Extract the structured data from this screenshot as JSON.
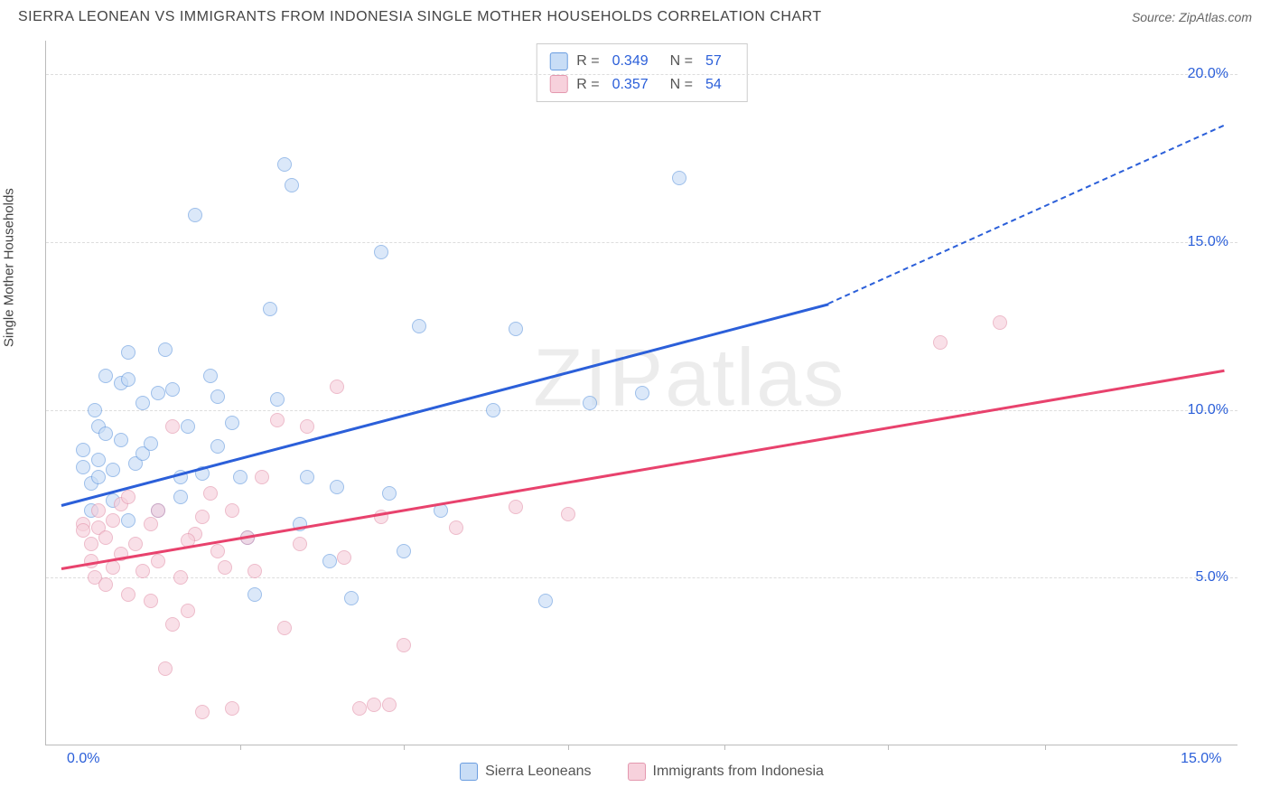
{
  "title": "SIERRA LEONEAN VS IMMIGRANTS FROM INDONESIA SINGLE MOTHER HOUSEHOLDS CORRELATION CHART",
  "source": "Source: ZipAtlas.com",
  "watermark": "ZIPatlas",
  "y_axis_label": "Single Mother Households",
  "chart": {
    "type": "scatter",
    "background_color": "#ffffff",
    "grid_color": "#dddddd",
    "axis_color": "#bbbbbb",
    "tick_label_color": "#2b5fd9",
    "xlim": [
      -0.5,
      15.5
    ],
    "ylim": [
      0,
      21
    ],
    "x_ticks": [
      0.0,
      15.0
    ],
    "x_tick_labels": [
      "0.0%",
      "15.0%"
    ],
    "x_minor_ticks": [
      2.1,
      4.3,
      6.5,
      8.6,
      10.8,
      12.9
    ],
    "y_ticks": [
      5.0,
      10.0,
      15.0,
      20.0
    ],
    "y_tick_labels": [
      "5.0%",
      "10.0%",
      "15.0%",
      "20.0%"
    ],
    "series": [
      {
        "name": "Sierra Leoneans",
        "fill": "#c8ddf6",
        "stroke": "#6a9de0",
        "trend_color": "#2b5fd9",
        "r": "0.349",
        "n": "57",
        "trend": {
          "x1": -0.3,
          "y1": 7.2,
          "x2": 10.0,
          "y2": 13.2,
          "x2_ext": 15.3,
          "y2_ext": 18.5
        },
        "points": [
          [
            0.0,
            8.8
          ],
          [
            0.0,
            8.3
          ],
          [
            0.1,
            7.0
          ],
          [
            0.1,
            7.8
          ],
          [
            0.15,
            10.0
          ],
          [
            0.2,
            9.5
          ],
          [
            0.2,
            8.5
          ],
          [
            0.2,
            8.0
          ],
          [
            0.3,
            11.0
          ],
          [
            0.3,
            9.3
          ],
          [
            0.4,
            8.2
          ],
          [
            0.4,
            7.3
          ],
          [
            0.5,
            9.1
          ],
          [
            0.5,
            10.8
          ],
          [
            0.6,
            10.9
          ],
          [
            0.6,
            6.7
          ],
          [
            0.7,
            8.4
          ],
          [
            0.8,
            8.7
          ],
          [
            0.8,
            10.2
          ],
          [
            0.9,
            9.0
          ],
          [
            1.0,
            10.5
          ],
          [
            1.0,
            7.0
          ],
          [
            1.1,
            11.8
          ],
          [
            1.2,
            10.6
          ],
          [
            1.3,
            8.0
          ],
          [
            1.3,
            7.4
          ],
          [
            1.4,
            9.5
          ],
          [
            1.5,
            15.8
          ],
          [
            1.6,
            8.1
          ],
          [
            1.7,
            11.0
          ],
          [
            1.8,
            10.4
          ],
          [
            2.0,
            9.6
          ],
          [
            2.1,
            8.0
          ],
          [
            2.3,
            4.5
          ],
          [
            2.5,
            13.0
          ],
          [
            2.6,
            10.3
          ],
          [
            2.7,
            17.3
          ],
          [
            2.8,
            16.7
          ],
          [
            2.9,
            6.6
          ],
          [
            3.0,
            8.0
          ],
          [
            3.3,
            5.5
          ],
          [
            3.4,
            7.7
          ],
          [
            3.6,
            4.4
          ],
          [
            4.0,
            14.7
          ],
          [
            4.1,
            7.5
          ],
          [
            4.3,
            5.8
          ],
          [
            4.5,
            12.5
          ],
          [
            4.8,
            7.0
          ],
          [
            5.5,
            10.0
          ],
          [
            5.8,
            12.4
          ],
          [
            6.2,
            4.3
          ],
          [
            6.8,
            10.2
          ],
          [
            7.5,
            10.5
          ],
          [
            8.0,
            16.9
          ],
          [
            0.6,
            11.7
          ],
          [
            1.8,
            8.9
          ],
          [
            2.2,
            6.2
          ]
        ]
      },
      {
        "name": "Immigrants from Indonesia",
        "fill": "#f7d1dc",
        "stroke": "#e498af",
        "trend_color": "#e8426d",
        "r": "0.357",
        "n": "54",
        "trend": {
          "x1": -0.3,
          "y1": 5.3,
          "x2": 15.3,
          "y2": 11.2,
          "x2_ext": 15.3,
          "y2_ext": 11.2
        },
        "points": [
          [
            0.0,
            6.6
          ],
          [
            0.0,
            6.4
          ],
          [
            0.1,
            6.0
          ],
          [
            0.1,
            5.5
          ],
          [
            0.15,
            5.0
          ],
          [
            0.2,
            7.0
          ],
          [
            0.2,
            6.5
          ],
          [
            0.3,
            4.8
          ],
          [
            0.3,
            6.2
          ],
          [
            0.4,
            6.7
          ],
          [
            0.4,
            5.3
          ],
          [
            0.5,
            7.2
          ],
          [
            0.5,
            5.7
          ],
          [
            0.6,
            7.4
          ],
          [
            0.6,
            4.5
          ],
          [
            0.7,
            6.0
          ],
          [
            0.8,
            5.2
          ],
          [
            0.9,
            6.6
          ],
          [
            0.9,
            4.3
          ],
          [
            1.0,
            5.5
          ],
          [
            1.0,
            7.0
          ],
          [
            1.1,
            2.3
          ],
          [
            1.2,
            3.6
          ],
          [
            1.2,
            9.5
          ],
          [
            1.3,
            5.0
          ],
          [
            1.4,
            4.0
          ],
          [
            1.5,
            6.3
          ],
          [
            1.6,
            6.8
          ],
          [
            1.6,
            1.0
          ],
          [
            1.7,
            7.5
          ],
          [
            1.8,
            5.8
          ],
          [
            1.9,
            5.3
          ],
          [
            2.0,
            1.1
          ],
          [
            2.0,
            7.0
          ],
          [
            2.2,
            6.2
          ],
          [
            2.3,
            5.2
          ],
          [
            2.4,
            8.0
          ],
          [
            2.6,
            9.7
          ],
          [
            2.7,
            3.5
          ],
          [
            2.9,
            6.0
          ],
          [
            3.0,
            9.5
          ],
          [
            3.4,
            10.7
          ],
          [
            3.5,
            5.6
          ],
          [
            3.7,
            1.1
          ],
          [
            3.9,
            1.2
          ],
          [
            4.0,
            6.8
          ],
          [
            4.1,
            1.2
          ],
          [
            4.3,
            3.0
          ],
          [
            5.0,
            6.5
          ],
          [
            5.8,
            7.1
          ],
          [
            6.5,
            6.9
          ],
          [
            11.5,
            12.0
          ],
          [
            12.3,
            12.6
          ],
          [
            1.4,
            6.1
          ]
        ]
      }
    ]
  },
  "bottom_legend": [
    {
      "label": "Sierra Leoneans",
      "fill": "#c8ddf6",
      "stroke": "#6a9de0"
    },
    {
      "label": "Immigrants from Indonesia",
      "fill": "#f7d1dc",
      "stroke": "#e498af"
    }
  ]
}
